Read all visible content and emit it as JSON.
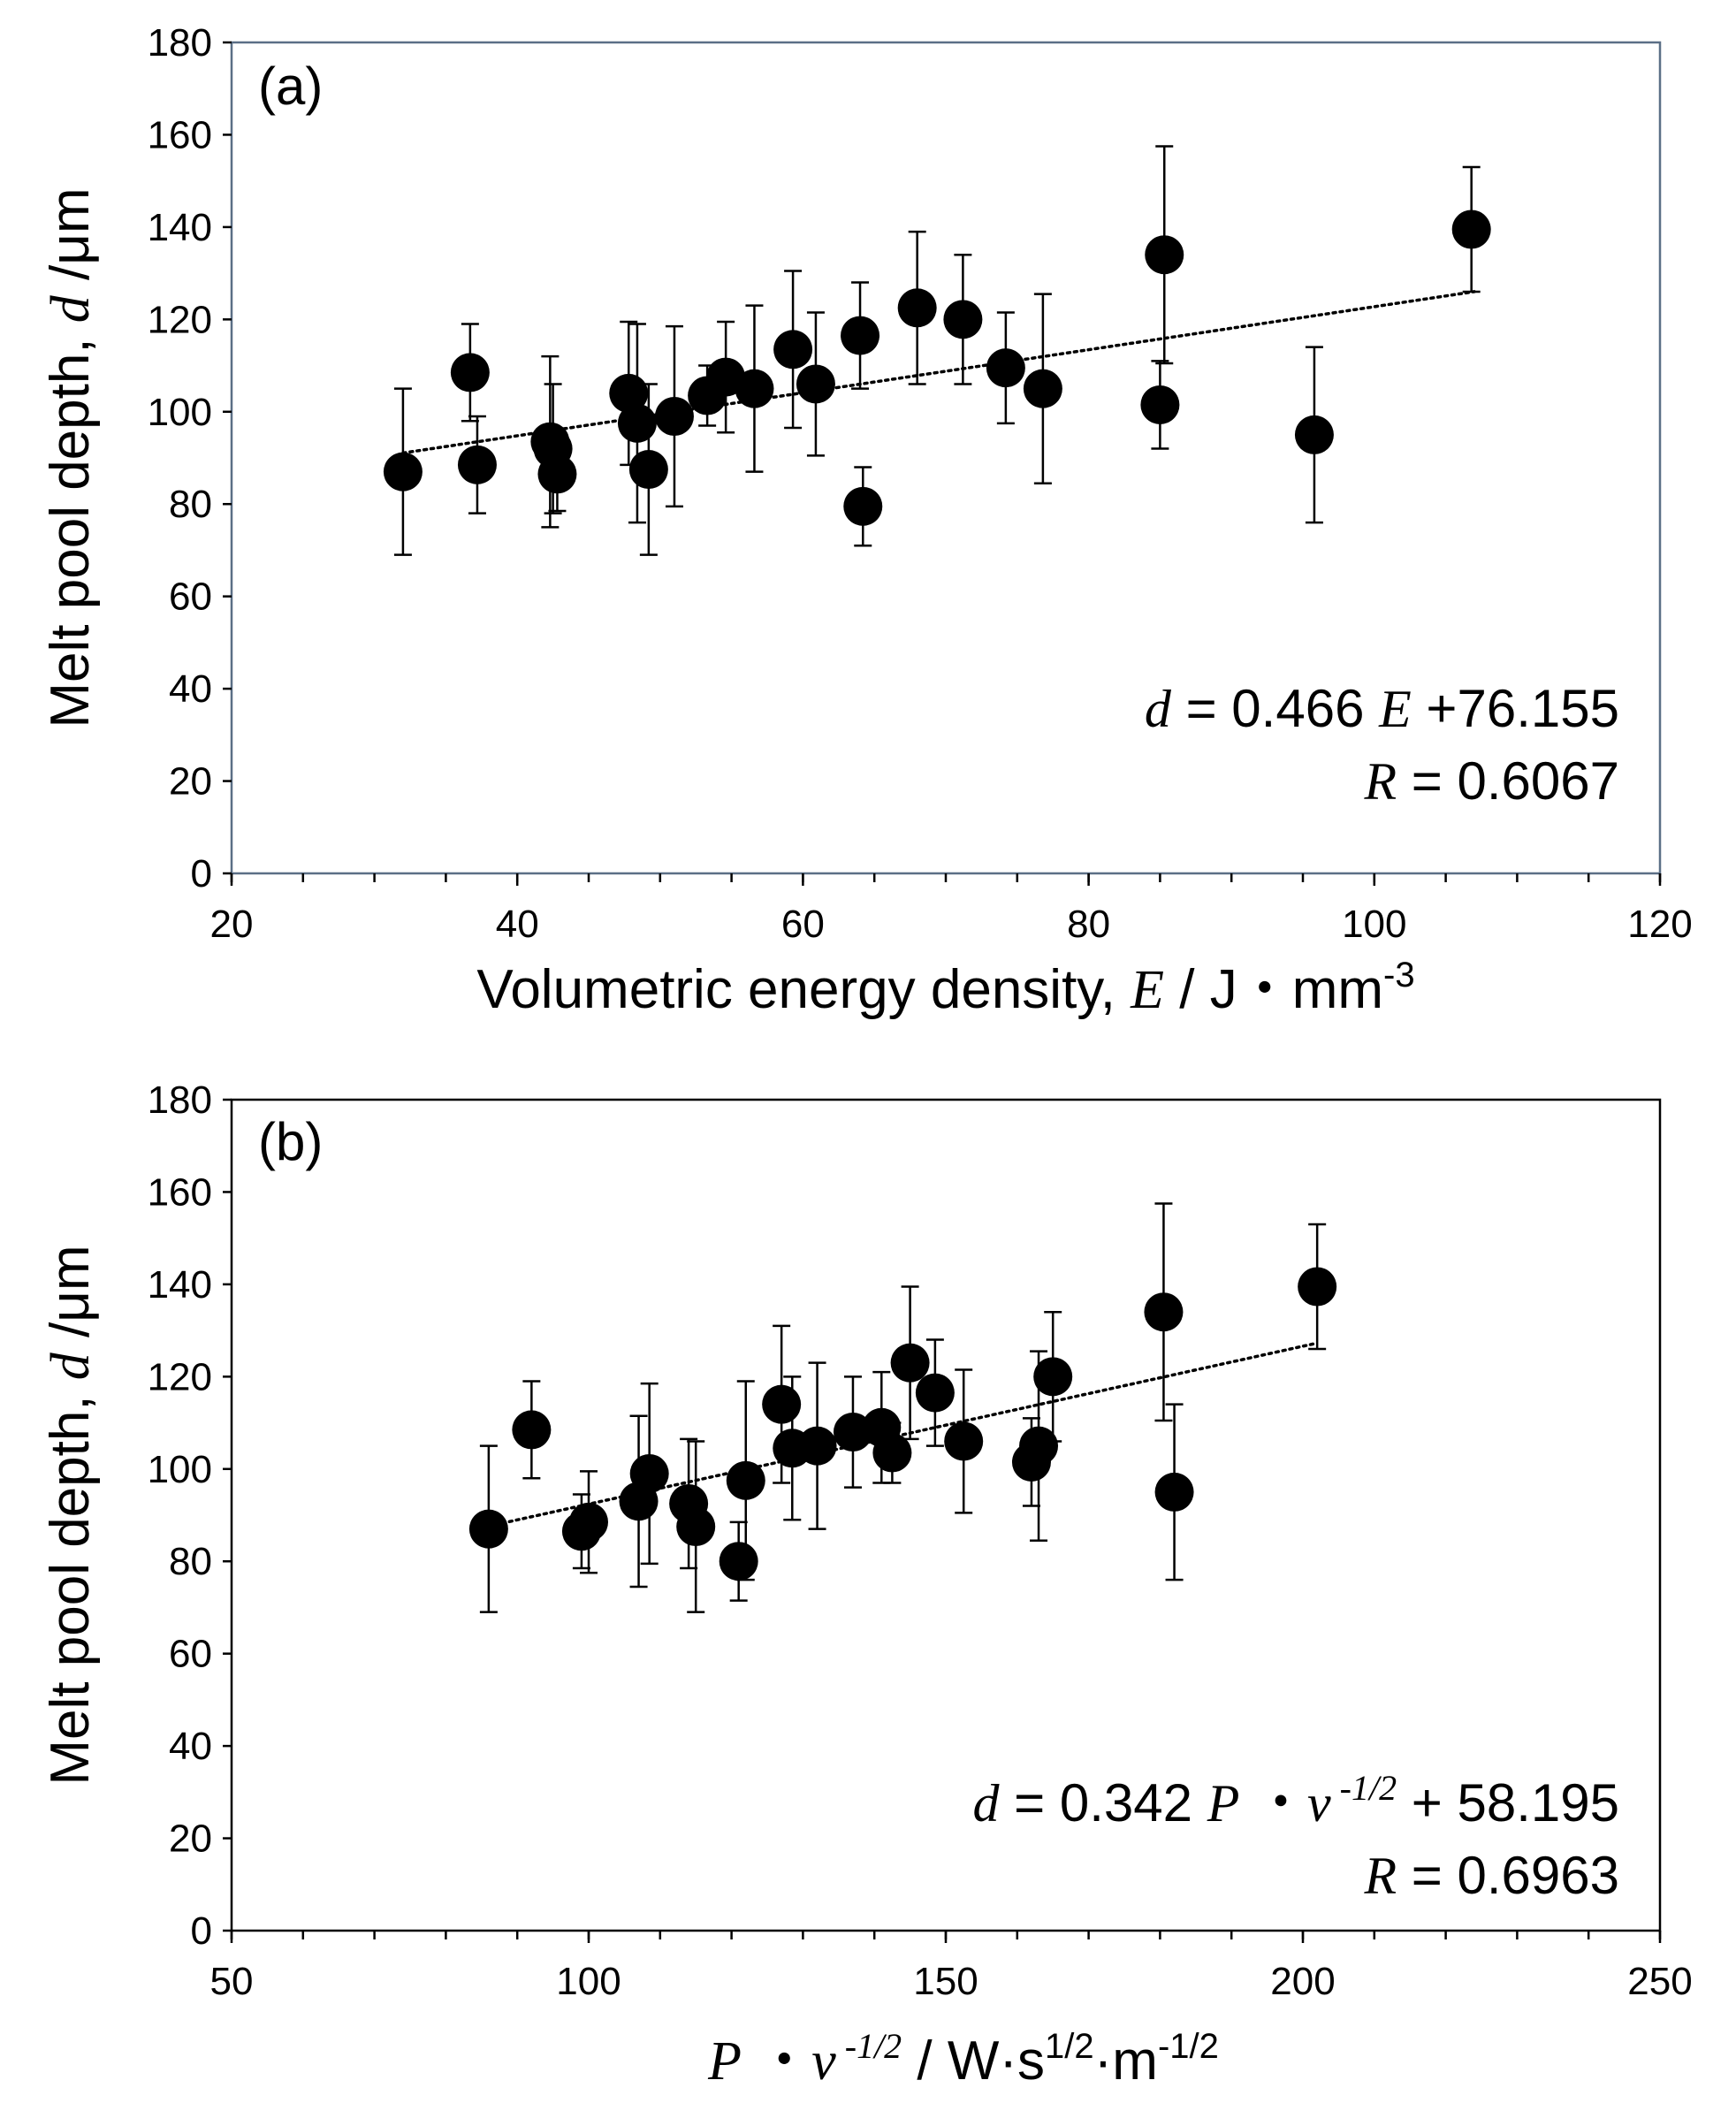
{
  "chart_data": [
    {
      "type": "scatter",
      "panel_label": "(a)",
      "ylabel": {
        "text": "Melt pool depth, ",
        "var": "d",
        "unit": " /μm"
      },
      "xlabel": {
        "text": "Volumetric energy density, ",
        "var": "E",
        "unit": " / J・mm",
        "sup": "-3"
      },
      "xlim": [
        20,
        120
      ],
      "ylim": [
        0,
        180
      ],
      "xticks": [
        20,
        40,
        60,
        80,
        100,
        120
      ],
      "xminor": 5,
      "yticks": [
        0,
        20,
        40,
        60,
        80,
        100,
        120,
        140,
        160,
        180
      ],
      "points": [
        {
          "x": 32.0,
          "y": 87,
          "err": 18
        },
        {
          "x": 36.7,
          "y": 108.5,
          "err": 10.5
        },
        {
          "x": 37.2,
          "y": 88.5,
          "err": 10.5
        },
        {
          "x": 42.3,
          "y": 93.5,
          "err": 18.5
        },
        {
          "x": 42.5,
          "y": 92,
          "err": 14
        },
        {
          "x": 42.8,
          "y": 86.5,
          "err": 8
        },
        {
          "x": 47.8,
          "y": 104,
          "err": 15.5
        },
        {
          "x": 48.4,
          "y": 97.5,
          "err": 21.5
        },
        {
          "x": 49.2,
          "y": 87.5,
          "err": 18.5
        },
        {
          "x": 51.0,
          "y": 99,
          "err": 19.5
        },
        {
          "x": 53.3,
          "y": 103.5,
          "err": 6.5
        },
        {
          "x": 54.6,
          "y": 107.5,
          "err": 12
        },
        {
          "x": 56.6,
          "y": 105,
          "err": 18
        },
        {
          "x": 59.3,
          "y": 113.5,
          "err": 17
        },
        {
          "x": 60.9,
          "y": 106,
          "err": 15.5
        },
        {
          "x": 64.0,
          "y": 116.5,
          "err": 11.5
        },
        {
          "x": 64.2,
          "y": 79.5,
          "err": 8.5
        },
        {
          "x": 68.0,
          "y": 122.5,
          "err": 16.5
        },
        {
          "x": 71.2,
          "y": 120,
          "err": 14
        },
        {
          "x": 74.2,
          "y": 109.5,
          "err": 12
        },
        {
          "x": 76.8,
          "y": 105,
          "err": 20.5
        },
        {
          "x": 85.0,
          "y": 101.5,
          "err": 9.5
        },
        {
          "x": 85.3,
          "y": 134,
          "err": 23.5
        },
        {
          "x": 95.8,
          "y": 95,
          "err": 19
        },
        {
          "x": 106.8,
          "y": 139.5,
          "err": 13.5
        }
      ],
      "trendline": {
        "slope": 0.466,
        "intercept": 76.155,
        "x_range": [
          32,
          107
        ],
        "style": "dotted"
      },
      "equation": {
        "lhs": "d",
        "text1": " = 0.466 ",
        "var": "E",
        "text2": " +76.155"
      },
      "r_value": {
        "var": "R",
        "text": " = 0.6067"
      }
    },
    {
      "type": "scatter",
      "panel_label": "(b)",
      "ylabel": {
        "text": "Melt pool depth, ",
        "var": "d",
        "unit": " /μm"
      },
      "xlabel": {
        "var1": "P",
        "dot": " ・",
        "var2": "v",
        "sup1": " -1/2",
        "unit1": " / W·s",
        "sup2": "1/2",
        "unit2": "·m",
        "sup3": "-1/2"
      },
      "xlim": [
        50,
        250
      ],
      "ylim": [
        0,
        180
      ],
      "xticks": [
        50,
        100,
        150,
        200,
        250
      ],
      "xminor": 10,
      "yticks": [
        0,
        20,
        40,
        60,
        80,
        100,
        120,
        140,
        160,
        180
      ],
      "points": [
        {
          "x": 86.0,
          "y": 87,
          "err": 18
        },
        {
          "x": 92.0,
          "y": 108.5,
          "err": 10.5
        },
        {
          "x": 99.0,
          "y": 86.5,
          "err": 8
        },
        {
          "x": 100.0,
          "y": 88.5,
          "err": 11
        },
        {
          "x": 107.0,
          "y": 93,
          "err": 18.5
        },
        {
          "x": 108.5,
          "y": 99,
          "err": 19.5
        },
        {
          "x": 114.0,
          "y": 92.5,
          "err": 14
        },
        {
          "x": 115.0,
          "y": 87.5,
          "err": 18.5
        },
        {
          "x": 121.0,
          "y": 80,
          "err": 8.5
        },
        {
          "x": 122.0,
          "y": 97.5,
          "err": 21.5
        },
        {
          "x": 127.0,
          "y": 114,
          "err": 17
        },
        {
          "x": 128.5,
          "y": 104.5,
          "err": 15.5
        },
        {
          "x": 132.0,
          "y": 105,
          "err": 18
        },
        {
          "x": 137.0,
          "y": 108,
          "err": 12
        },
        {
          "x": 141.0,
          "y": 109,
          "err": 12
        },
        {
          "x": 142.5,
          "y": 103.5,
          "err": 6.5
        },
        {
          "x": 145.0,
          "y": 123,
          "err": 16.5
        },
        {
          "x": 148.5,
          "y": 116.5,
          "err": 11.5
        },
        {
          "x": 152.5,
          "y": 106,
          "err": 15.5
        },
        {
          "x": 162.0,
          "y": 101.5,
          "err": 9.5
        },
        {
          "x": 163.0,
          "y": 105,
          "err": 20.5
        },
        {
          "x": 165.0,
          "y": 120,
          "err": 14
        },
        {
          "x": 180.5,
          "y": 134,
          "err": 23.5
        },
        {
          "x": 182.0,
          "y": 95,
          "err": 19
        },
        {
          "x": 202.0,
          "y": 139.5,
          "err": 13.5
        }
      ],
      "trendline": {
        "slope": 0.342,
        "intercept": 58.195,
        "x_range": [
          86,
          202
        ],
        "style": "dotted"
      },
      "equation": {
        "lhs": "d",
        "text1": " = 0.342 ",
        "var1": "P",
        "dot": " ・",
        "var2": "v",
        "sup": " -1/2",
        "text2": " + 58.195"
      },
      "r_value": {
        "var": "R",
        "text": " = 0.6963"
      }
    }
  ]
}
